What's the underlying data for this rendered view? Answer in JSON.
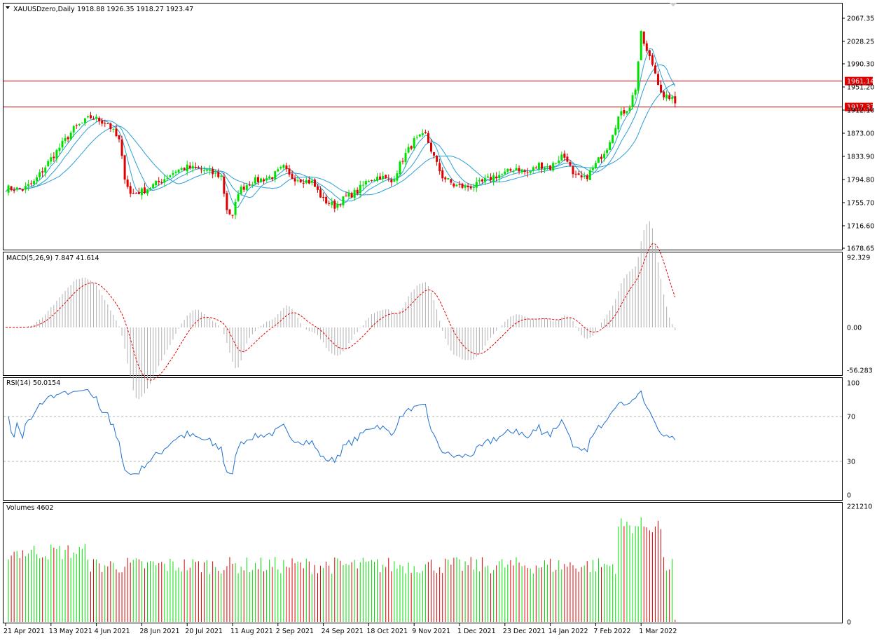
{
  "header": {
    "symbol_title": "XAUUSDzero,Daily",
    "ohlc_text": "1918.88 1926.35 1918.27 1923.47",
    "dropdown_icon": "triangle-down-icon"
  },
  "colors": {
    "bull": "#00e000",
    "bear": "#e00000",
    "ma": "#2a9fd6",
    "hline": "#e00000",
    "macd_hist": "#b0b0b0",
    "signal": "#e00000",
    "rsi": "#1e6fd0",
    "axis": "#000000"
  },
  "price_axis": {
    "ticks": [
      "2067.35",
      "2028.25",
      "1990.30",
      "1951.20",
      "1912.10",
      "1873.00",
      "1833.90",
      "1794.80",
      "1755.70",
      "1716.60",
      "1678.65"
    ],
    "tick_values": [
      2067.35,
      2028.25,
      1990.3,
      1951.2,
      1912.1,
      1873.0,
      1833.9,
      1794.8,
      1755.7,
      1716.6,
      1678.65
    ],
    "hlines": [
      {
        "value": 1961.14,
        "label": "1961.14"
      },
      {
        "value": 1917.37,
        "label": "1917.37"
      }
    ]
  },
  "macd": {
    "label": "MACD(5,26,9) 7.847 41.614",
    "ticks": [
      "92.329",
      "0.00",
      "-56.283"
    ]
  },
  "rsi": {
    "label": "RSI(14) 50.0154",
    "ticks": [
      "100",
      "70",
      "30",
      "0"
    ],
    "levels": [
      70,
      30
    ]
  },
  "volumes": {
    "label": "Volumes 4602",
    "ticks": [
      "221210",
      "0"
    ]
  },
  "time_axis": {
    "labels": [
      "21 Apr 2021",
      "13 May 2021",
      "4 Jun 2021",
      "28 Jun 2021",
      "20 Jul 2021",
      "11 Aug 2021",
      "2 Sep 2021",
      "24 Sep 2021",
      "18 Oct 2021",
      "9 Nov 2021",
      "1 Dec 2021",
      "23 Dec 2021",
      "14 Jan 2022",
      "7 Feb 2022",
      "1 Mar 2022"
    ],
    "label_bar_index": [
      0,
      16,
      32,
      48,
      64,
      80,
      96,
      112,
      128,
      144,
      160,
      176,
      192,
      208,
      224
    ]
  },
  "chart_data": {
    "type": "candlestick",
    "x_start": "2021-04-21",
    "bars": 236,
    "close_keypoints": [
      [
        0,
        1780
      ],
      [
        6,
        1778
      ],
      [
        10,
        1790
      ],
      [
        16,
        1830
      ],
      [
        24,
        1880
      ],
      [
        30,
        1900
      ],
      [
        36,
        1890
      ],
      [
        40,
        1860
      ],
      [
        42,
        1800
      ],
      [
        44,
        1770
      ],
      [
        48,
        1775
      ],
      [
        54,
        1790
      ],
      [
        60,
        1810
      ],
      [
        64,
        1815
      ],
      [
        70,
        1810
      ],
      [
        76,
        1800
      ],
      [
        78,
        1745
      ],
      [
        80,
        1730
      ],
      [
        82,
        1775
      ],
      [
        86,
        1790
      ],
      [
        94,
        1800
      ],
      [
        98,
        1815
      ],
      [
        100,
        1800
      ],
      [
        104,
        1795
      ],
      [
        108,
        1790
      ],
      [
        112,
        1760
      ],
      [
        116,
        1750
      ],
      [
        120,
        1765
      ],
      [
        124,
        1775
      ],
      [
        128,
        1795
      ],
      [
        132,
        1800
      ],
      [
        136,
        1790
      ],
      [
        140,
        1830
      ],
      [
        144,
        1860
      ],
      [
        148,
        1870
      ],
      [
        152,
        1820
      ],
      [
        154,
        1800
      ],
      [
        158,
        1785
      ],
      [
        162,
        1782
      ],
      [
        166,
        1785
      ],
      [
        172,
        1800
      ],
      [
        176,
        1805
      ],
      [
        180,
        1815
      ],
      [
        184,
        1805
      ],
      [
        188,
        1820
      ],
      [
        192,
        1815
      ],
      [
        196,
        1835
      ],
      [
        198,
        1830
      ],
      [
        200,
        1800
      ],
      [
        204,
        1795
      ],
      [
        208,
        1820
      ],
      [
        212,
        1850
      ],
      [
        216,
        1900
      ],
      [
        220,
        1920
      ],
      [
        222,
        1950
      ],
      [
        224,
        2040
      ],
      [
        226,
        2010
      ],
      [
        228,
        1990
      ],
      [
        230,
        1960
      ],
      [
        232,
        1930
      ],
      [
        234,
        1935
      ],
      [
        236,
        1923.47
      ]
    ],
    "indicator_range": {
      "macd_min": -56.283,
      "macd_max": 92.329,
      "rsi_min": 0,
      "rsi_max": 100,
      "volume_max": 221210
    }
  }
}
